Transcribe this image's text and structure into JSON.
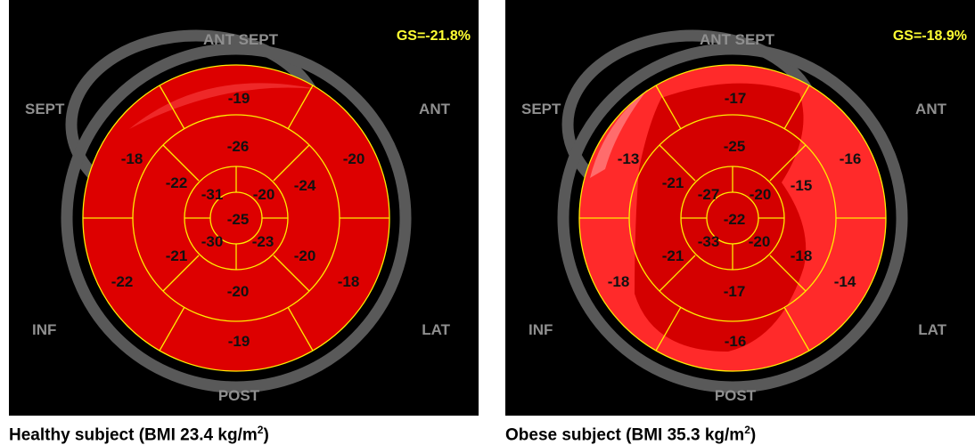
{
  "panels": [
    {
      "id": "healthy",
      "gs": "GS=-21.8%",
      "labels": {
        "ant_sept": "ANT SEPT",
        "sept": "SEPT",
        "ant": "ANT",
        "inf": "INF",
        "lat": "LAT",
        "post": "POST"
      },
      "segments": {
        "s1": "-19",
        "s2": "-20",
        "s3": "-18",
        "s4": "-19",
        "s5": "-22",
        "s6": "-18",
        "s7": "-26",
        "s8": "-24",
        "s9": "-20",
        "s10": "-20",
        "s11": "-21",
        "s12": "-22",
        "s13": "-20",
        "s14": "-23",
        "s15": "-30",
        "s16": "-31",
        "s17": "-25"
      },
      "caption_text": "Healthy subject (BMI 23.4 kg/m",
      "caption_sup": "2",
      "caption_end": ")",
      "colors": {
        "segment_fill": "#dd0000",
        "shading": "none"
      }
    },
    {
      "id": "obese",
      "gs": "GS=-18.9%",
      "labels": {
        "ant_sept": "ANT SEPT",
        "sept": "SEPT",
        "ant": "ANT",
        "inf": "INF",
        "lat": "LAT",
        "post": "POST"
      },
      "segments": {
        "s1": "-17",
        "s2": "-16",
        "s3": "-14",
        "s4": "-16",
        "s5": "-18",
        "s6": "-13",
        "s7": "-25",
        "s8": "-15",
        "s9": "-18",
        "s10": "-17",
        "s11": "-21",
        "s12": "-21",
        "s13": "-20",
        "s14": "-20",
        "s15": "-33",
        "s16": "-27",
        "s17": "-22"
      },
      "caption_text": "Obese subject (BMI 35.3 kg/m",
      "caption_sup": "2",
      "caption_end": ")",
      "colors": {
        "segment_fill": "#ff2a2a",
        "shading": "#d40000"
      }
    }
  ],
  "colors": {
    "background": "#000000",
    "ring": "#595959",
    "grid_lines": "#ffee00",
    "region_labels": "#8f8f8f",
    "gs_text": "#ffff33"
  }
}
